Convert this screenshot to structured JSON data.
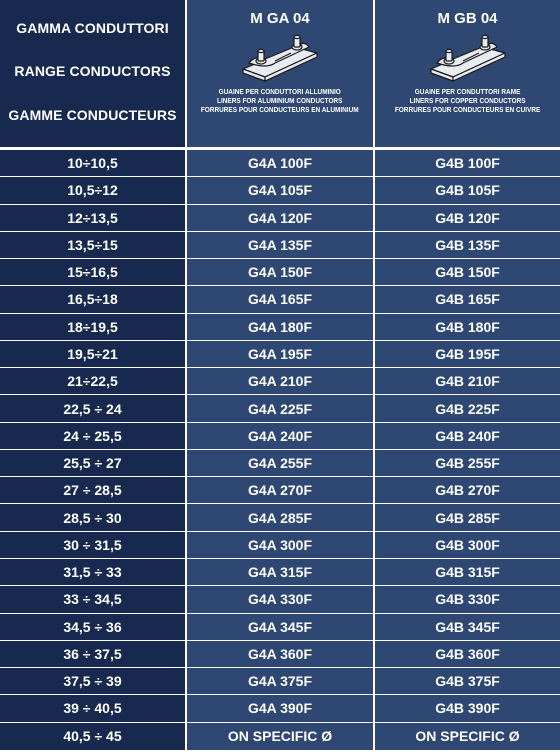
{
  "header": {
    "range_labels": [
      "GAMMA CONDUTTORI",
      "RANGE CONDUCTORS",
      "GAMME CONDUCTEURS"
    ],
    "products": [
      {
        "code": "M GA 04",
        "icon": "clamp-liner-icon",
        "desc": [
          "GUAINE PER CONDUTTORI ALLUMINIO",
          "LINERS FOR ALUMINIUM CONDUCTORS",
          "FORRURES POUR CONDUCTEURS EN ALUMINIUM"
        ]
      },
      {
        "code": "M GB 04",
        "icon": "clamp-liner-icon",
        "desc": [
          "GUAINE PER CONDUTTORI RAME",
          "LINERS FOR COPPER CONDUCTORS",
          "FORRURES POUR CONDUCTEURS EN CUIVRE"
        ]
      }
    ]
  },
  "rows": [
    {
      "range": "10÷10,5",
      "ga": "G4A 100F",
      "gb": "G4B 100F"
    },
    {
      "range": "10,5÷12",
      "ga": "G4A 105F",
      "gb": "G4B 105F"
    },
    {
      "range": "12÷13,5",
      "ga": "G4A 120F",
      "gb": "G4B 120F"
    },
    {
      "range": "13,5÷15",
      "ga": "G4A 135F",
      "gb": "G4B 135F"
    },
    {
      "range": "15÷16,5",
      "ga": "G4A 150F",
      "gb": "G4B 150F"
    },
    {
      "range": "16,5÷18",
      "ga": "G4A 165F",
      "gb": "G4B 165F"
    },
    {
      "range": "18÷19,5",
      "ga": "G4A 180F",
      "gb": "G4B 180F"
    },
    {
      "range": "19,5÷21",
      "ga": "G4A 195F",
      "gb": "G4B 195F"
    },
    {
      "range": "21÷22,5",
      "ga": "G4A 210F",
      "gb": "G4B 210F"
    },
    {
      "range": "22,5 ÷ 24",
      "ga": "G4A 225F",
      "gb": "G4B 225F"
    },
    {
      "range": "24 ÷ 25,5",
      "ga": "G4A 240F",
      "gb": "G4B 240F"
    },
    {
      "range": "25,5 ÷ 27",
      "ga": "G4A 255F",
      "gb": "G4B 255F"
    },
    {
      "range": "27 ÷ 28,5",
      "ga": "G4A 270F",
      "gb": "G4B 270F"
    },
    {
      "range": "28,5 ÷ 30",
      "ga": "G4A 285F",
      "gb": "G4B 285F"
    },
    {
      "range": "30 ÷ 31,5",
      "ga": "G4A 300F",
      "gb": "G4B 300F"
    },
    {
      "range": "31,5 ÷ 33",
      "ga": "G4A 315F",
      "gb": "G4B 315F"
    },
    {
      "range": "33 ÷ 34,5",
      "ga": "G4A 330F",
      "gb": "G4B 330F"
    },
    {
      "range": "34,5 ÷ 36",
      "ga": "G4A 345F",
      "gb": "G4B 345F"
    },
    {
      "range": "36 ÷ 37,5",
      "ga": "G4A 360F",
      "gb": "G4B 360F"
    },
    {
      "range": "37,5 ÷ 39",
      "ga": "G4A 375F",
      "gb": "G4B 375F"
    },
    {
      "range": "39 ÷ 40,5",
      "ga": "G4A 390F",
      "gb": "G4B 390F"
    },
    {
      "range": "40,5 ÷ 45",
      "ga": "ON SPECIFIC Ø",
      "gb": "ON SPECIFIC Ø"
    }
  ],
  "colors": {
    "range_col": "#17294f",
    "product_col": "#2e4773",
    "separator": "#ffffff"
  }
}
